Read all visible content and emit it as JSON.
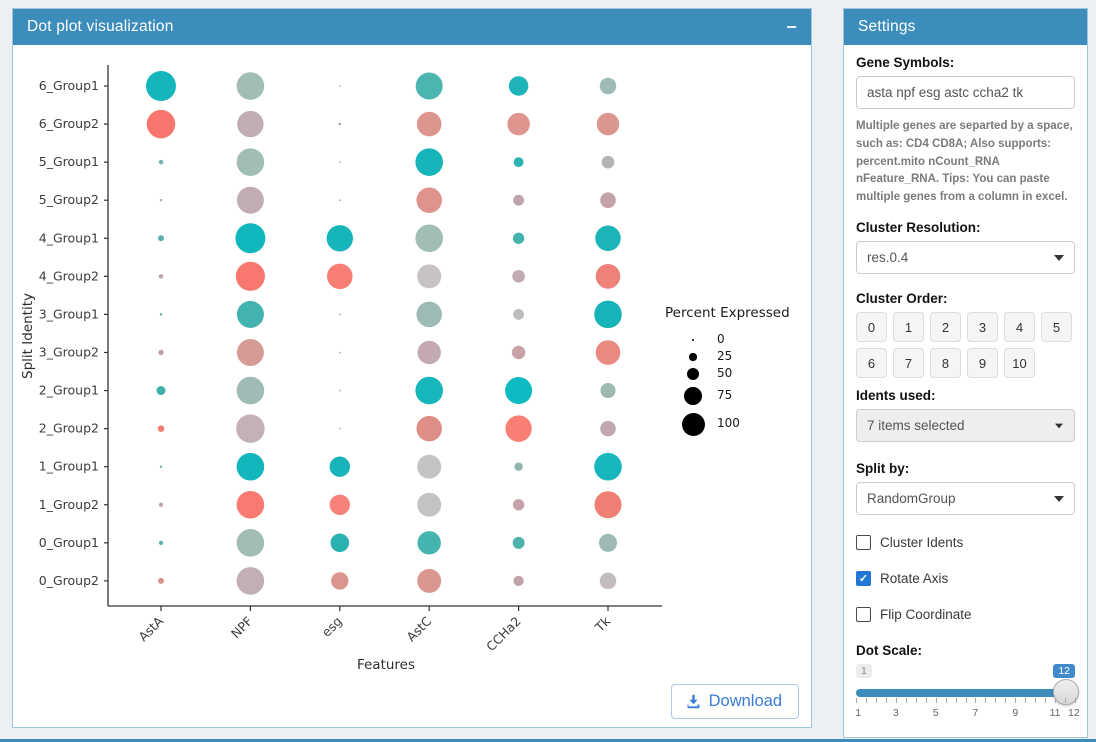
{
  "plot_panel": {
    "title": "Dot plot visualization",
    "collapse_icon": "minus",
    "download_label": "Download",
    "header_color": "#3c8dbc"
  },
  "chart_data": {
    "type": "dotplot",
    "xlabel": "Features",
    "ylabel": "Split Identity",
    "categories_x": [
      "AstA",
      "NPF",
      "esg",
      "AstC",
      "CCHa2",
      "Tk"
    ],
    "categories_y": [
      "6_Group1",
      "6_Group2",
      "5_Group1",
      "5_Group2",
      "4_Group1",
      "4_Group2",
      "3_Group1",
      "3_Group2",
      "2_Group1",
      "2_Group2",
      "1_Group1",
      "1_Group2",
      "0_Group1",
      "0_Group2"
    ],
    "legend": {
      "title": "Percent Expressed",
      "items": [
        {
          "label": "0",
          "pct": 0
        },
        {
          "label": "25",
          "pct": 25
        },
        {
          "label": "50",
          "pct": 50
        },
        {
          "label": "75",
          "pct": 75
        },
        {
          "label": "100",
          "pct": 100
        }
      ]
    },
    "group_colors": {
      "Group1_high": "#14b6bb",
      "Group2_high": "#f8766d",
      "low": "#c3c3c3"
    },
    "rows": [
      {
        "y": "6_Group1",
        "dots": [
          {
            "pct": 100,
            "color": "#14b6bb"
          },
          {
            "pct": 92,
            "color": "#a2bcb6"
          },
          {
            "pct": 5,
            "color": "#9fb0ac"
          },
          {
            "pct": 90,
            "color": "#4bb5b0"
          },
          {
            "pct": 65,
            "color": "#1fb4b8"
          },
          {
            "pct": 55,
            "color": "#9dbab4"
          }
        ]
      },
      {
        "y": "6_Group2",
        "dots": [
          {
            "pct": 95,
            "color": "#f8766d"
          },
          {
            "pct": 88,
            "color": "#c1aeb3"
          },
          {
            "pct": 8,
            "color": "#a09a9c"
          },
          {
            "pct": 82,
            "color": "#de958e"
          },
          {
            "pct": 75,
            "color": "#df948d"
          },
          {
            "pct": 75,
            "color": "#da968f"
          }
        ]
      },
      {
        "y": "5_Group1",
        "dots": [
          {
            "pct": 15,
            "color": "#75b2ac"
          },
          {
            "pct": 92,
            "color": "#a2bcb6"
          },
          {
            "pct": 4,
            "color": "#a8b2ae"
          },
          {
            "pct": 92,
            "color": "#17b5ba"
          },
          {
            "pct": 33,
            "color": "#2eb3b5"
          },
          {
            "pct": 42,
            "color": "#b3b3b3"
          }
        ]
      },
      {
        "y": "5_Group2",
        "dots": [
          {
            "pct": 8,
            "color": "#b3a4a8"
          },
          {
            "pct": 90,
            "color": "#c1aeb3"
          },
          {
            "pct": 4,
            "color": "#b0a7aa"
          },
          {
            "pct": 85,
            "color": "#e0938c"
          },
          {
            "pct": 36,
            "color": "#c0a4a9"
          },
          {
            "pct": 52,
            "color": "#c3a3a8"
          }
        ]
      },
      {
        "y": "4_Group1",
        "dots": [
          {
            "pct": 20,
            "color": "#57b0ab"
          },
          {
            "pct": 100,
            "color": "#10b7bd"
          },
          {
            "pct": 88,
            "color": "#15b5ba"
          },
          {
            "pct": 92,
            "color": "#a2bcb6"
          },
          {
            "pct": 38,
            "color": "#46b2ad"
          },
          {
            "pct": 85,
            "color": "#1ab4b9"
          }
        ]
      },
      {
        "y": "4_Group2",
        "dots": [
          {
            "pct": 15,
            "color": "#bfa3a8"
          },
          {
            "pct": 97,
            "color": "#f8776e"
          },
          {
            "pct": 85,
            "color": "#f87e75"
          },
          {
            "pct": 80,
            "color": "#c7c3c4"
          },
          {
            "pct": 42,
            "color": "#c1aab0"
          },
          {
            "pct": 82,
            "color": "#ee8279"
          }
        ]
      },
      {
        "y": "3_Group1",
        "dots": [
          {
            "pct": 8,
            "color": "#51a89a"
          },
          {
            "pct": 90,
            "color": "#42b3ae"
          },
          {
            "pct": 4,
            "color": "#a8b2ae"
          },
          {
            "pct": 85,
            "color": "#9ebab4"
          },
          {
            "pct": 36,
            "color": "#bdbdbd"
          },
          {
            "pct": 92,
            "color": "#17b4b9"
          }
        ]
      },
      {
        "y": "3_Group2",
        "dots": [
          {
            "pct": 18,
            "color": "#bf9fa5"
          },
          {
            "pct": 90,
            "color": "#d69b95"
          },
          {
            "pct": 4,
            "color": "#b3a7aa"
          },
          {
            "pct": 78,
            "color": "#c2aab0"
          },
          {
            "pct": 45,
            "color": "#c9a2a8"
          },
          {
            "pct": 82,
            "color": "#e9897f"
          }
        ]
      },
      {
        "y": "2_Group1",
        "dots": [
          {
            "pct": 30,
            "color": "#41b0ab"
          },
          {
            "pct": 92,
            "color": "#a0bbb5"
          },
          {
            "pct": 4,
            "color": "#a8b2ae"
          },
          {
            "pct": 92,
            "color": "#16b6bb"
          },
          {
            "pct": 90,
            "color": "#0cbcc2"
          },
          {
            "pct": 50,
            "color": "#a0b8b2"
          }
        ]
      },
      {
        "y": "2_Group2",
        "dots": [
          {
            "pct": 22,
            "color": "#ef8077"
          },
          {
            "pct": 95,
            "color": "#c3b1b6"
          },
          {
            "pct": 4,
            "color": "#b3a7aa"
          },
          {
            "pct": 85,
            "color": "#df8e86"
          },
          {
            "pct": 88,
            "color": "#f97f75"
          },
          {
            "pct": 52,
            "color": "#bfa9af"
          }
        ]
      },
      {
        "y": "1_Group1",
        "dots": [
          {
            "pct": 8,
            "color": "#63b0aa"
          },
          {
            "pct": 92,
            "color": "#13b6bc"
          },
          {
            "pct": 68,
            "color": "#18b4ba"
          },
          {
            "pct": 80,
            "color": "#c3c3c3"
          },
          {
            "pct": 28,
            "color": "#91b6b0"
          },
          {
            "pct": 92,
            "color": "#16b6bc"
          }
        ]
      },
      {
        "y": "1_Group2",
        "dots": [
          {
            "pct": 14,
            "color": "#bfa1a7"
          },
          {
            "pct": 92,
            "color": "#f87a71"
          },
          {
            "pct": 68,
            "color": "#f8827b"
          },
          {
            "pct": 80,
            "color": "#c5c2c3"
          },
          {
            "pct": 38,
            "color": "#c5a2a8"
          },
          {
            "pct": 90,
            "color": "#f07e74"
          }
        ]
      },
      {
        "y": "0_Group1",
        "dots": [
          {
            "pct": 14,
            "color": "#5aaca6"
          },
          {
            "pct": 92,
            "color": "#a2bcb6"
          },
          {
            "pct": 62,
            "color": "#2ab1b2"
          },
          {
            "pct": 78,
            "color": "#45b4af"
          },
          {
            "pct": 40,
            "color": "#4eb2ac"
          },
          {
            "pct": 60,
            "color": "#9fbab4"
          }
        ]
      },
      {
        "y": "0_Group2",
        "dots": [
          {
            "pct": 20,
            "color": "#d2918b"
          },
          {
            "pct": 92,
            "color": "#c1afb4"
          },
          {
            "pct": 58,
            "color": "#dc958e"
          },
          {
            "pct": 80,
            "color": "#dc9690"
          },
          {
            "pct": 34,
            "color": "#c2a3a9"
          },
          {
            "pct": 55,
            "color": "#c3bcbe"
          }
        ]
      }
    ]
  },
  "settings": {
    "title": "Settings",
    "gene_symbols": {
      "label": "Gene Symbols:",
      "value": "asta npf esg astc ccha2 tk"
    },
    "help_text": "Multiple genes are separted by a space, such as: CD4 CD8A; Also supports: percent.mito nCount_RNA nFeature_RNA. Tips: You can paste multiple genes from a column in excel.",
    "cluster_resolution": {
      "label": "Cluster Resolution:",
      "value": "res.0.4"
    },
    "cluster_order": {
      "label": "Cluster Order:",
      "buttons": [
        "0",
        "1",
        "2",
        "3",
        "4",
        "5",
        "6",
        "7",
        "8",
        "9",
        "10"
      ]
    },
    "idents_used": {
      "label": "Idents used:",
      "value": "7 items selected"
    },
    "split_by": {
      "label": "Split by:",
      "value": "RandomGroup"
    },
    "checkboxes": [
      {
        "label": "Cluster Idents",
        "checked": false
      },
      {
        "label": "Rotate Axis",
        "checked": true
      },
      {
        "label": "Flip Coordinate",
        "checked": false
      }
    ],
    "dot_scale": {
      "label": "Dot Scale:",
      "min_label": "1",
      "value": "12",
      "slider_min": 1,
      "slider_max": 12,
      "tick_labels": [
        "1",
        "3",
        "5",
        "7",
        "9",
        "11",
        "12"
      ]
    }
  }
}
